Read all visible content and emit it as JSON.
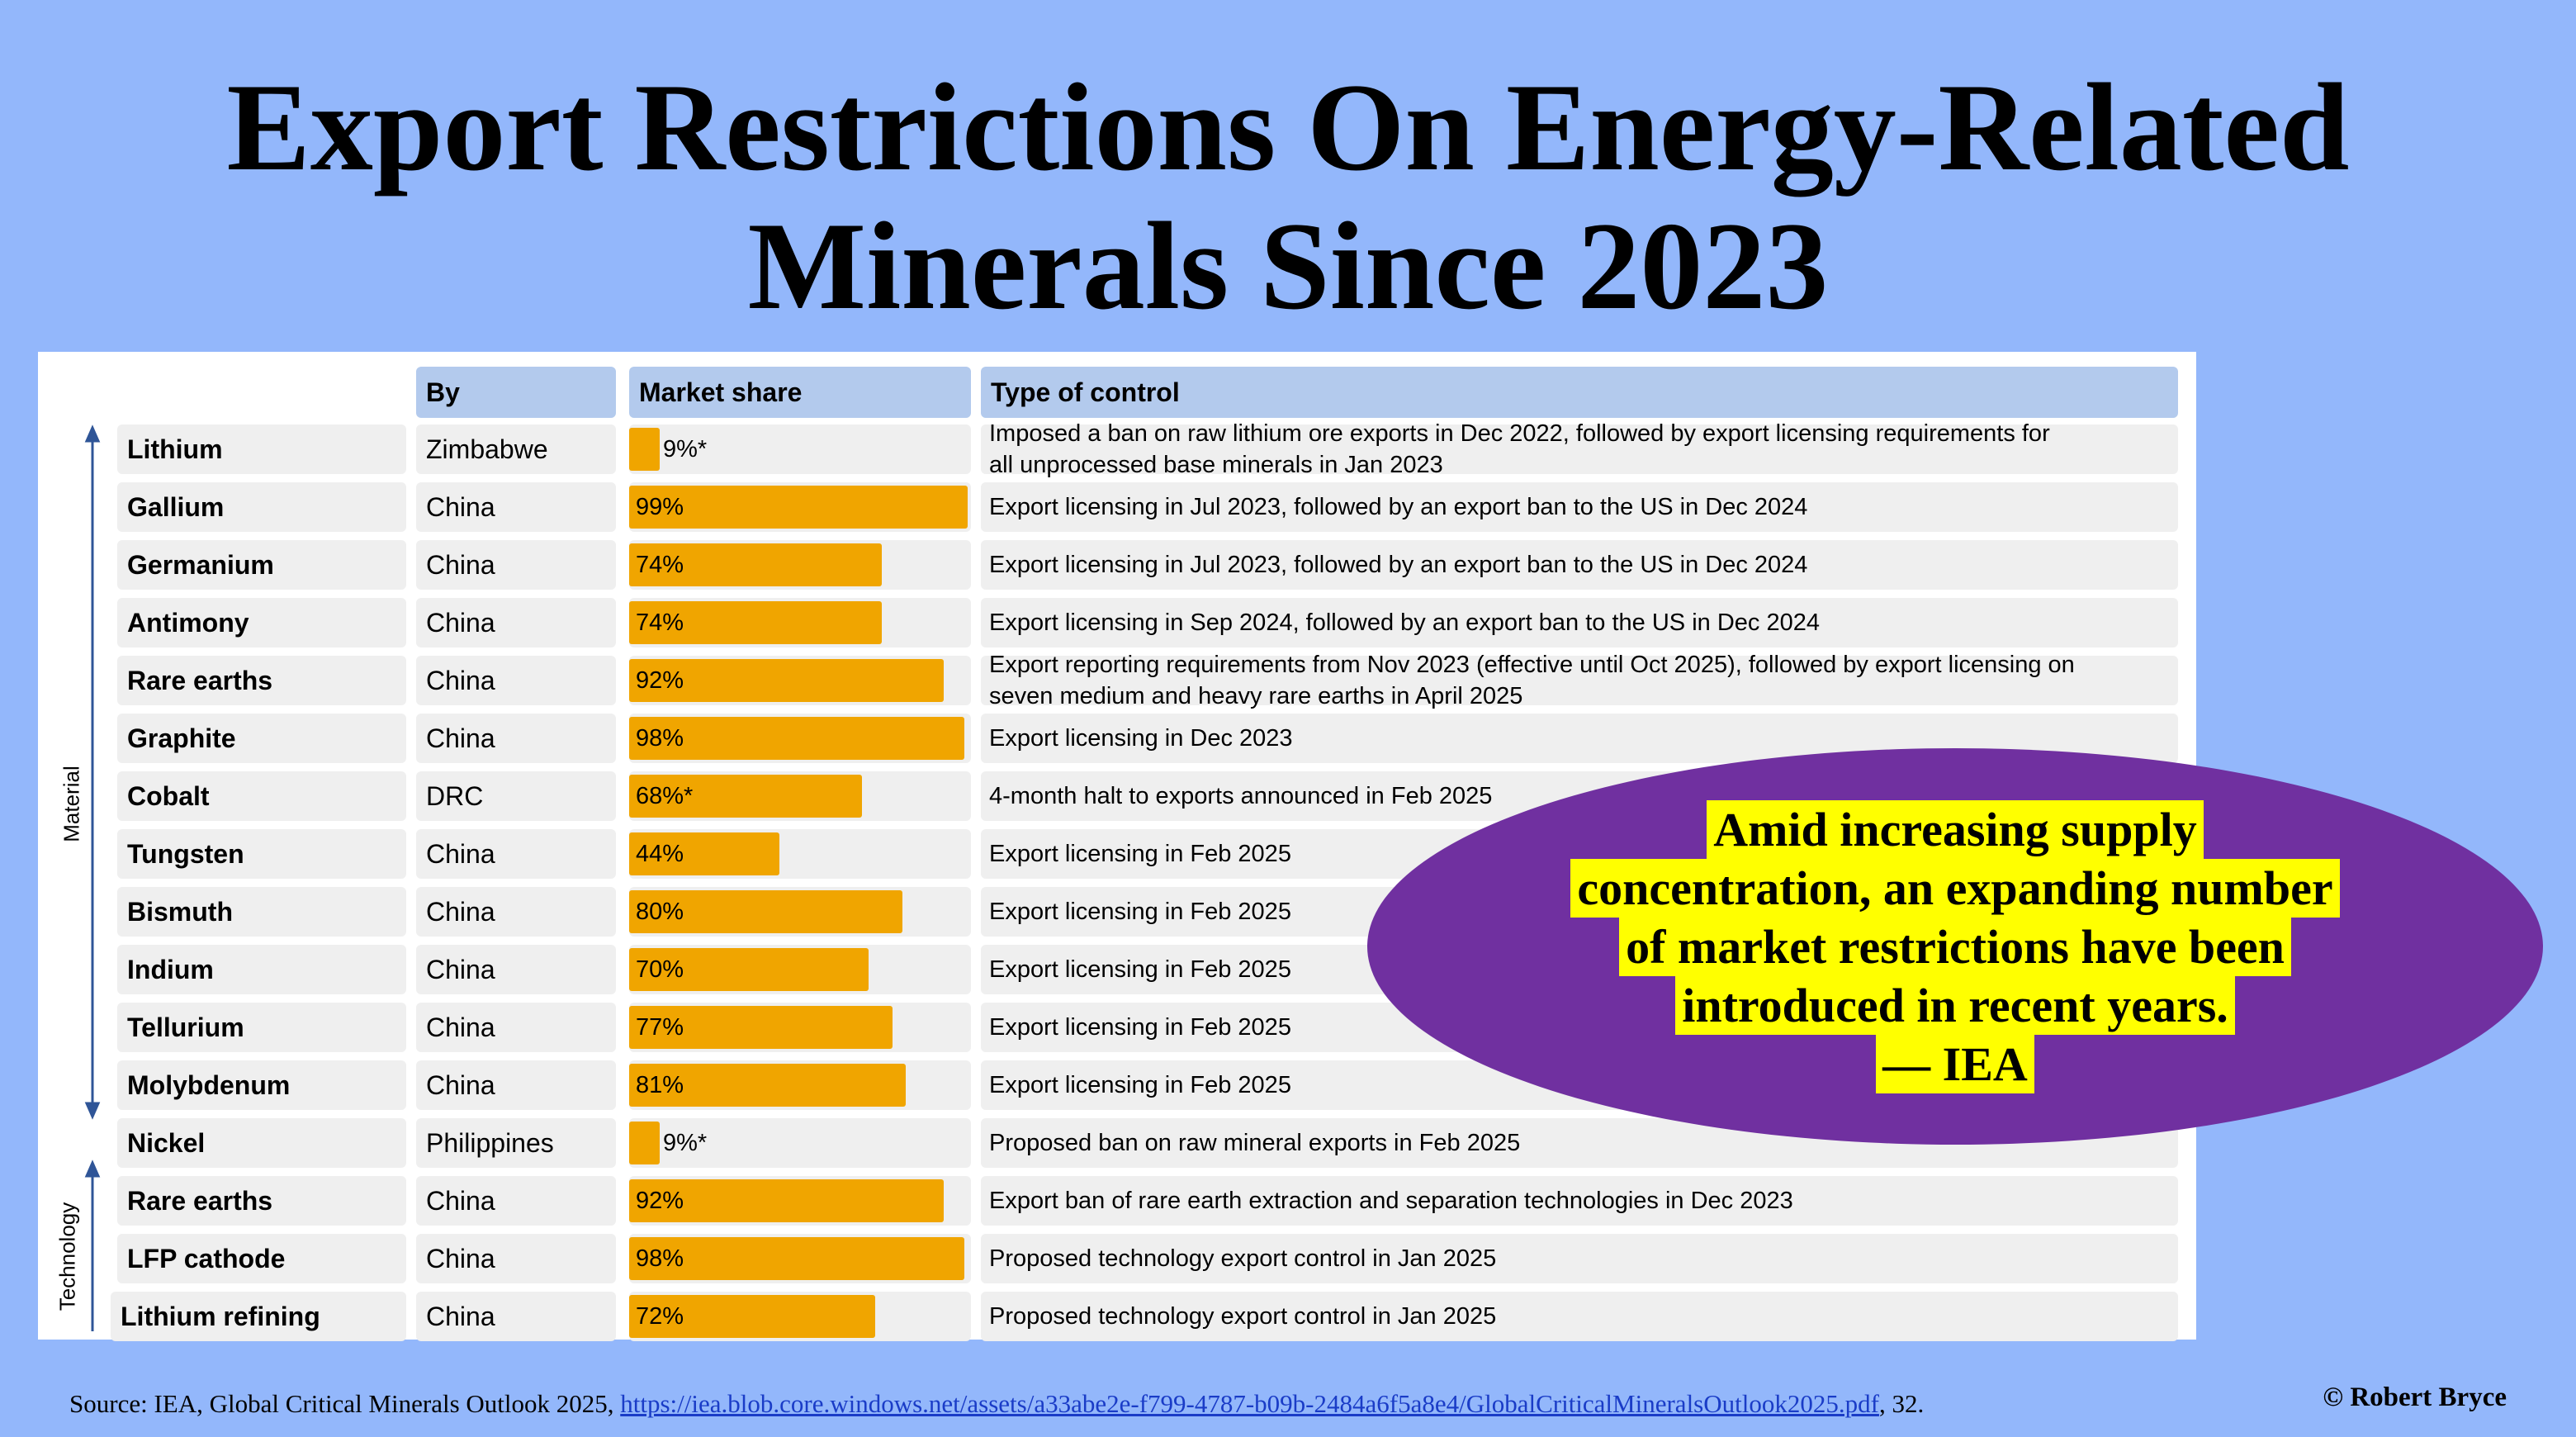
{
  "title": {
    "line1": "Export Restrictions On Energy-Related",
    "line2": "Minerals Since 2023"
  },
  "colors": {
    "background": "#93b7fb",
    "header_fill": "#b3caed",
    "bar_fill": "#f0a500",
    "cell_fill": "#efefef",
    "callout_fill": "#7030a0",
    "highlight": "#ffff00"
  },
  "chart_data": {
    "type": "table",
    "columns": [
      "",
      "By",
      "Market share",
      "Type of control"
    ],
    "groups": [
      {
        "label": "Material",
        "rows": 13
      },
      {
        "label": "Technology",
        "rows": 3
      }
    ],
    "rows": [
      {
        "mineral": "Lithium",
        "by": "Zimbabwe",
        "share": 9,
        "share_label": "9%*",
        "control": "Imposed a ban on raw lithium ore exports in Dec 2022, followed by export licensing requirements for all unprocessed base minerals in Jan 2023"
      },
      {
        "mineral": "Gallium",
        "by": "China",
        "share": 99,
        "share_label": "99%",
        "control": "Export licensing in Jul 2023, followed by an export ban to the US in Dec 2024"
      },
      {
        "mineral": "Germanium",
        "by": "China",
        "share": 74,
        "share_label": "74%",
        "control": "Export licensing in Jul 2023, followed by an export ban to the US in Dec 2024"
      },
      {
        "mineral": "Antimony",
        "by": "China",
        "share": 74,
        "share_label": "74%",
        "control": "Export licensing in Sep 2024, followed by an export ban to the US in Dec 2024"
      },
      {
        "mineral": "Rare earths",
        "by": "China",
        "share": 92,
        "share_label": "92%",
        "control": "Export reporting requirements from Nov 2023 (effective until Oct 2025), followed by export licensing on seven medium and heavy rare earths in April 2025"
      },
      {
        "mineral": "Graphite",
        "by": "China",
        "share": 98,
        "share_label": "98%",
        "control": "Export licensing in Dec 2023"
      },
      {
        "mineral": "Cobalt",
        "by": "DRC",
        "share": 68,
        "share_label": "68%*",
        "control": "4-month halt to exports announced in Feb 2025"
      },
      {
        "mineral": "Tungsten",
        "by": "China",
        "share": 44,
        "share_label": "44%",
        "control": "Export licensing in Feb 2025"
      },
      {
        "mineral": "Bismuth",
        "by": "China",
        "share": 80,
        "share_label": "80%",
        "control": "Export licensing in Feb 2025"
      },
      {
        "mineral": "Indium",
        "by": "China",
        "share": 70,
        "share_label": "70%",
        "control": "Export licensing in Feb 2025"
      },
      {
        "mineral": "Tellurium",
        "by": "China",
        "share": 77,
        "share_label": "77%",
        "control": "Export licensing in Feb 2025"
      },
      {
        "mineral": "Molybdenum",
        "by": "China",
        "share": 81,
        "share_label": "81%",
        "control": "Export licensing in Feb 2025"
      },
      {
        "mineral": "Nickel",
        "by": "Philippines",
        "share": 9,
        "share_label": "9%*",
        "control": "Proposed ban on raw mineral exports in Feb 2025"
      },
      {
        "mineral": "Rare earths",
        "by": "China",
        "share": 92,
        "share_label": "92%",
        "control": "Export ban of rare earth extraction and separation technologies in Dec 2023"
      },
      {
        "mineral": "LFP cathode",
        "by": "China",
        "share": 98,
        "share_label": "98%",
        "control": "Proposed technology export control in Jan 2025"
      },
      {
        "mineral": "Lithium refining",
        "by": "China",
        "share": 72,
        "share_label": "72%",
        "control": "Proposed technology export control in Jan 2025"
      }
    ]
  },
  "callout": {
    "lines": [
      "Amid increasing supply",
      "concentration, an expanding number",
      "of market restrictions have been",
      "introduced in recent years.",
      "— IEA"
    ]
  },
  "source": {
    "prefix": "Source: IEA, Global Critical Minerals Outlook 2025, ",
    "link": "https://iea.blob.core.windows.net/assets/a33abe2e-f799-4787-b09b-2484a6f5a8e4/GlobalCriticalMineralsOutlook2025.pdf",
    "suffix": ", 32."
  },
  "copyright": "© Robert Bryce"
}
